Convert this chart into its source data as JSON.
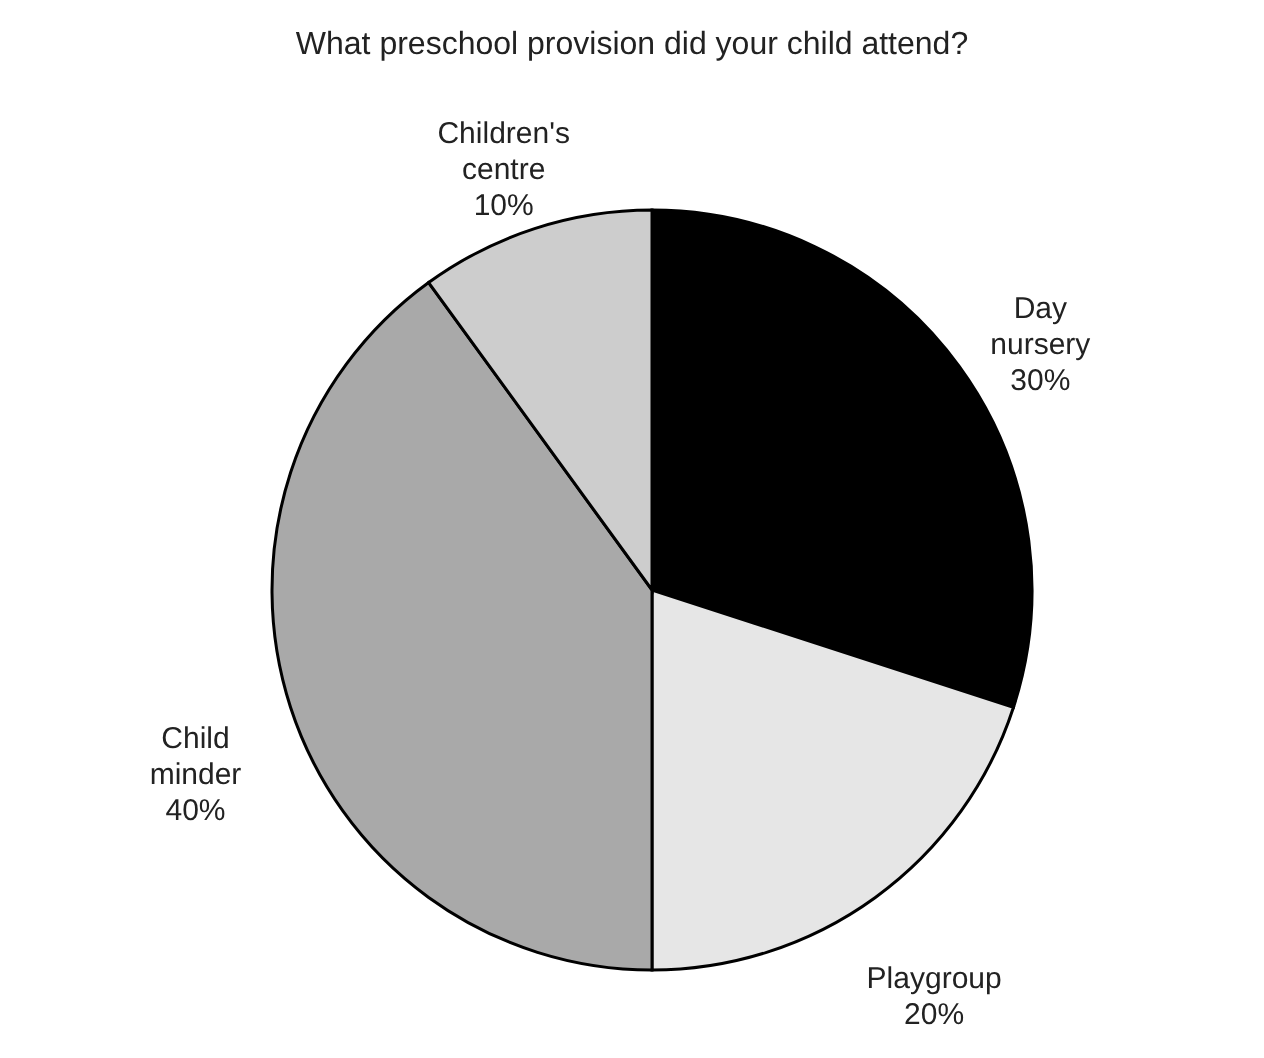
{
  "chart_data": {
    "type": "pie",
    "title": "What preschool provision did your child attend?",
    "categories": [
      "Day nursery",
      "Playgroup",
      "Child minder",
      "Children's centre"
    ],
    "values": [
      30,
      20,
      40,
      10
    ],
    "value_labels": [
      "30%",
      "20%",
      "40%",
      "10%"
    ],
    "colors": [
      "#000000",
      "#e6e6e6",
      "#a9a9a9",
      "#cdcdcd"
    ],
    "legend": false
  }
}
